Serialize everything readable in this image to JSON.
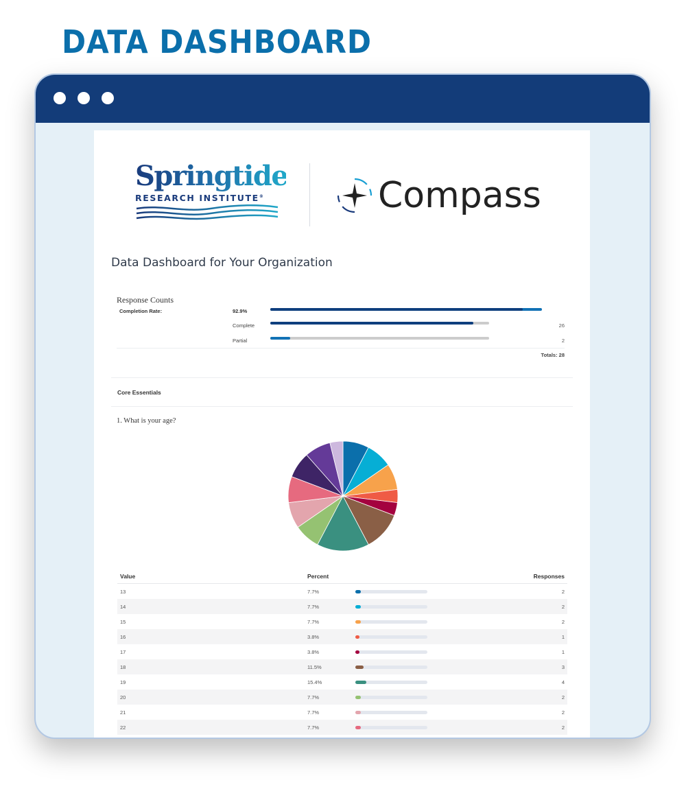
{
  "hero": {
    "title": "DATA DASHBOARD"
  },
  "window": {
    "titlebar_color": "#133c79",
    "dots": [
      "window-dot",
      "window-dot",
      "window-dot"
    ]
  },
  "logos": {
    "springtide": {
      "name": "Springtide",
      "subtitle": "RESEARCH INSTITUTE",
      "mark": "®"
    },
    "compass": {
      "name": "Compass",
      "icon": "compass-star-icon"
    }
  },
  "page": {
    "title": "Data Dashboard for Your Organization"
  },
  "response_counts": {
    "title": "Response Counts",
    "completion_label": "Completion Rate:",
    "completion_rate": "92.9%",
    "completion_pct": 92.9,
    "rows": [
      {
        "label": "Complete",
        "count": "26",
        "pct": 92.9,
        "color": "#0f3f7e"
      },
      {
        "label": "Partial",
        "count": "2",
        "pct": 7.1,
        "color": "#1272b5"
      }
    ],
    "totals": "Totals: 28"
  },
  "section": {
    "title": "Core Essentials"
  },
  "question": {
    "text": "1. What is your age?",
    "table": {
      "headers": {
        "value": "Value",
        "percent": "Percent",
        "responses": "Responses"
      },
      "rows": [
        {
          "value": "13",
          "percent": "7.7%",
          "pct": 7.7,
          "responses": "2",
          "color": "#0b6fab"
        },
        {
          "value": "14",
          "percent": "7.7%",
          "pct": 7.7,
          "responses": "2",
          "color": "#06aed5"
        },
        {
          "value": "15",
          "percent": "7.7%",
          "pct": 7.7,
          "responses": "2",
          "color": "#f7a24b"
        },
        {
          "value": "16",
          "percent": "3.8%",
          "pct": 3.8,
          "responses": "1",
          "color": "#ef5b45"
        },
        {
          "value": "17",
          "percent": "3.8%",
          "pct": 3.8,
          "responses": "1",
          "color": "#a4023f"
        },
        {
          "value": "18",
          "percent": "11.5%",
          "pct": 11.5,
          "responses": "3",
          "color": "#8a5f46"
        },
        {
          "value": "19",
          "percent": "15.4%",
          "pct": 15.4,
          "responses": "4",
          "color": "#3a9080"
        },
        {
          "value": "20",
          "percent": "7.7%",
          "pct": 7.7,
          "responses": "2",
          "color": "#95c272"
        },
        {
          "value": "21",
          "percent": "7.7%",
          "pct": 7.7,
          "responses": "2",
          "color": "#e3a5ad"
        },
        {
          "value": "22",
          "percent": "7.7%",
          "pct": 7.7,
          "responses": "2",
          "color": "#e66a7f"
        }
      ]
    }
  },
  "chart_data": {
    "type": "pie",
    "title": "1. What is your age?",
    "categories": [
      "13",
      "14",
      "15",
      "16",
      "17",
      "18",
      "19",
      "20",
      "21",
      "22",
      "(unlabeled)",
      "(unlabeled)",
      "(unlabeled)"
    ],
    "values": [
      2,
      2,
      2,
      1,
      1,
      3,
      4,
      2,
      2,
      2,
      2,
      2,
      1
    ],
    "percents": [
      7.7,
      7.7,
      7.7,
      3.8,
      3.8,
      11.5,
      15.4,
      7.7,
      7.7,
      7.7,
      7.7,
      7.7,
      3.8
    ],
    "colors": [
      "#0b6fab",
      "#06aed5",
      "#f7a24b",
      "#ef5b45",
      "#a4023f",
      "#8a5f46",
      "#3a9080",
      "#95c272",
      "#e3a5ad",
      "#e66a7f",
      "#3e2466",
      "#643a98",
      "#cdb8de"
    ],
    "start_angle": "12 o'clock, clockwise",
    "legend": "none (see table)"
  }
}
